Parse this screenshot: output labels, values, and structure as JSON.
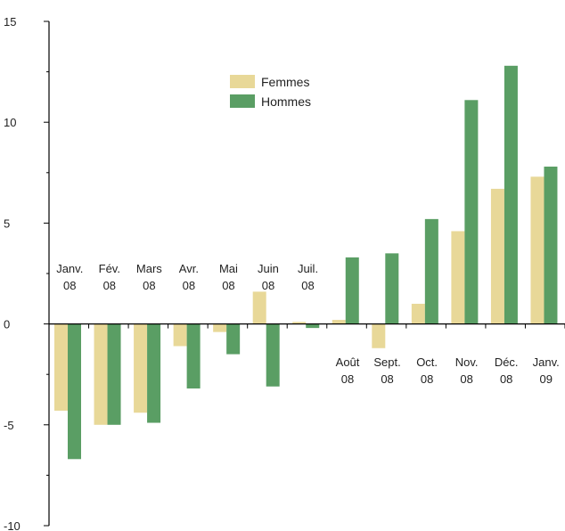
{
  "chart_data": {
    "type": "bar",
    "categories": [
      [
        "Janv.",
        "08"
      ],
      [
        "Fév.",
        "08"
      ],
      [
        "Mars",
        "08"
      ],
      [
        "Avr.",
        "08"
      ],
      [
        "Mai",
        "08"
      ],
      [
        "Juin",
        "08"
      ],
      [
        "Juil.",
        "08"
      ],
      [
        "Août",
        "08"
      ],
      [
        "Sept.",
        "08"
      ],
      [
        "Oct.",
        "08"
      ],
      [
        "Nov.",
        "08"
      ],
      [
        "Déc.",
        "08"
      ],
      [
        "Janv.",
        "09"
      ]
    ],
    "series": [
      {
        "name": "Femmes",
        "color": "#e8d898",
        "values": [
          -4.3,
          -5.0,
          -4.4,
          -1.1,
          -0.4,
          1.6,
          0.1,
          0.2,
          -1.2,
          1.0,
          4.6,
          6.7,
          7.3
        ]
      },
      {
        "name": "Hommes",
        "color": "#5a9e64",
        "values": [
          -6.7,
          -5.0,
          -4.9,
          -3.2,
          -1.5,
          -3.1,
          -0.2,
          3.3,
          3.5,
          5.2,
          11.1,
          12.8,
          7.8
        ]
      }
    ],
    "ylim": [
      -10,
      15
    ],
    "yticks": [
      -10,
      -5,
      0,
      5,
      10,
      15
    ],
    "title": "",
    "xlabel": "",
    "ylabel": "",
    "legend": "top-center",
    "grid": false
  }
}
